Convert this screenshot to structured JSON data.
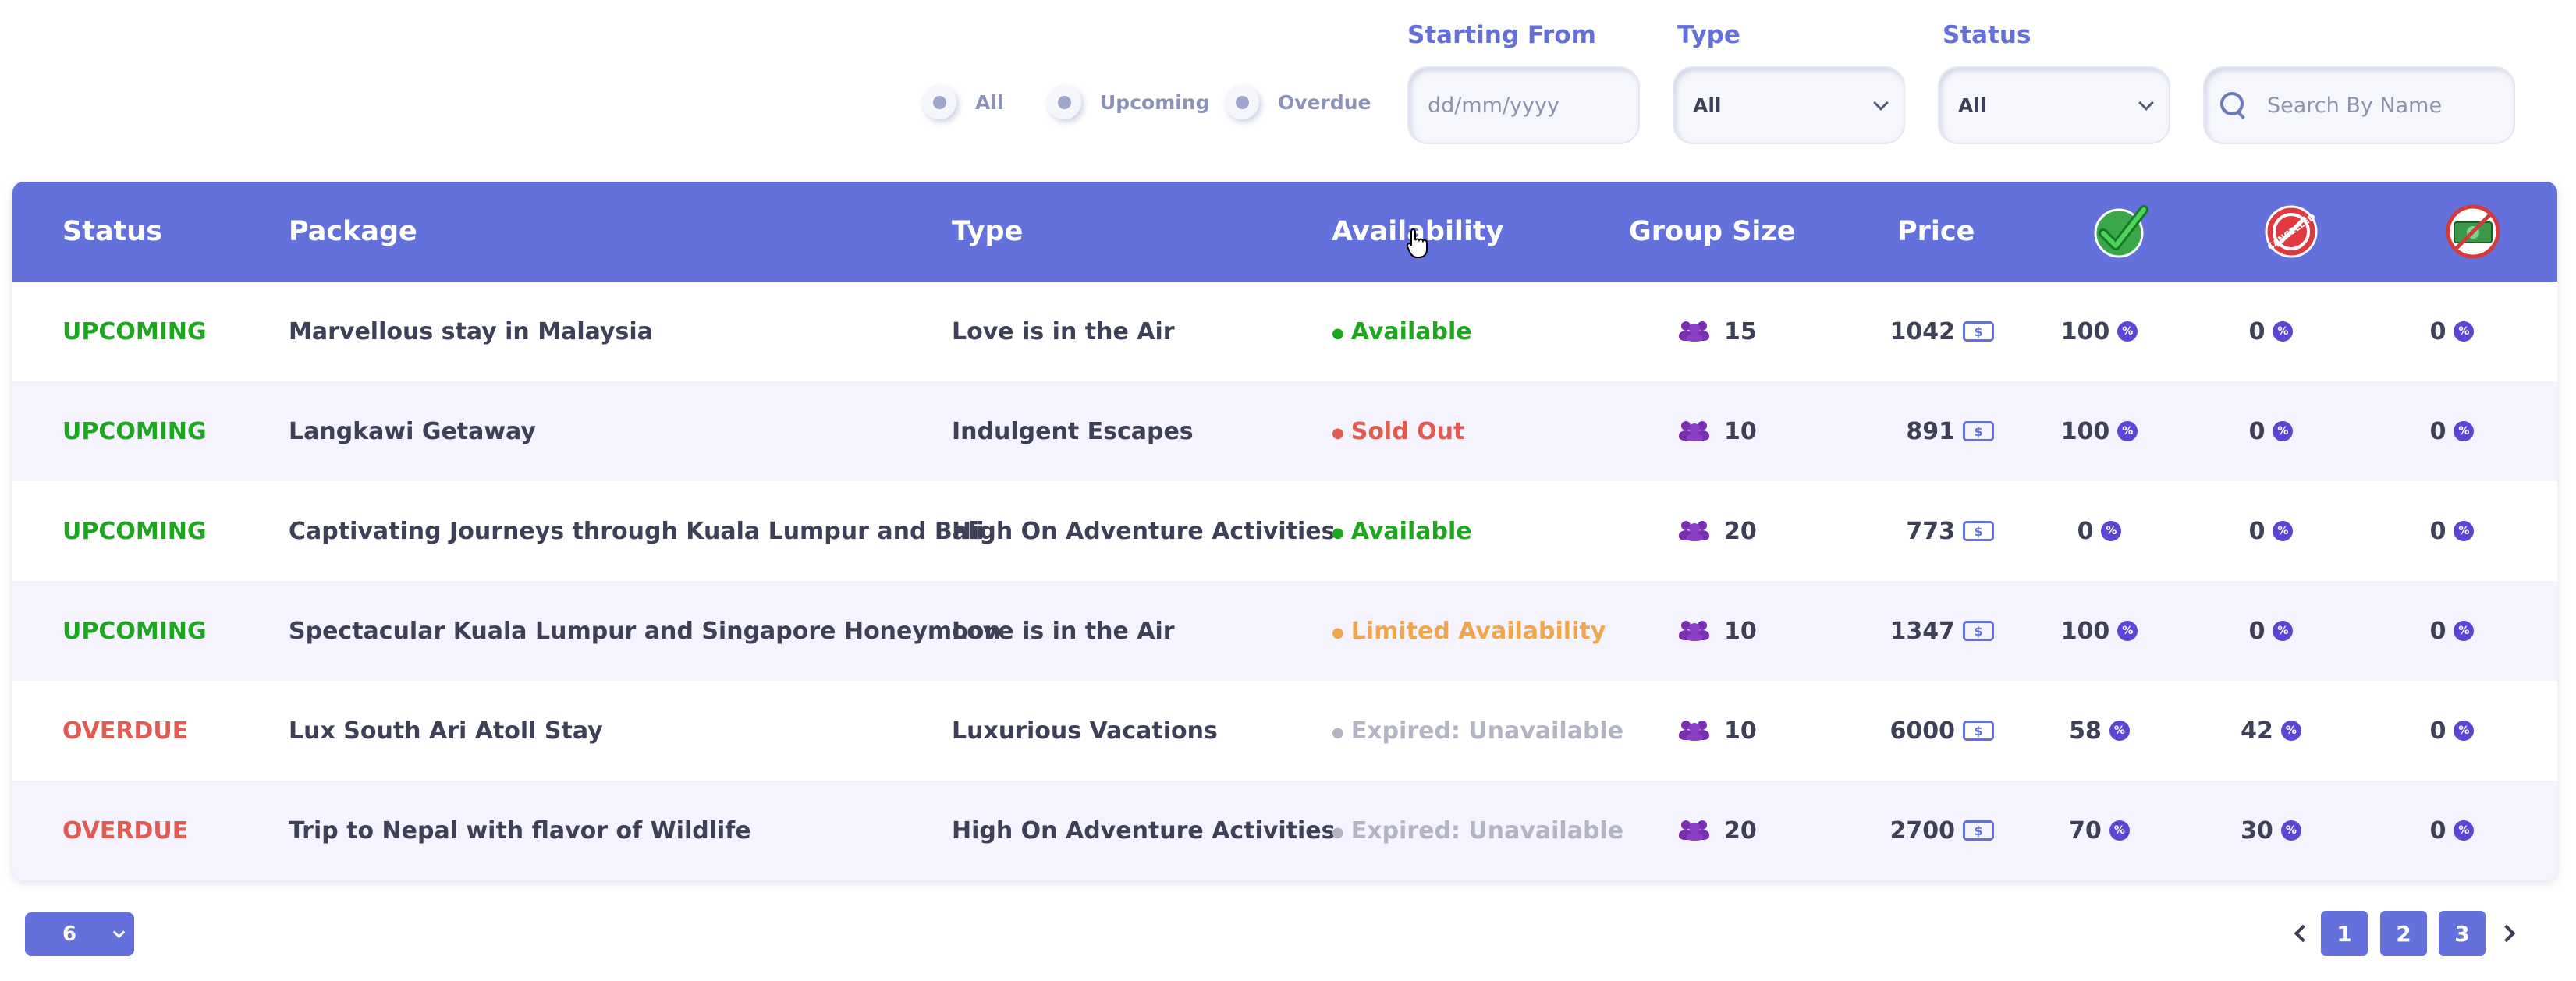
{
  "filters": {
    "radios": [
      {
        "label": "All"
      },
      {
        "label": "Upcoming"
      },
      {
        "label": "Overdue"
      }
    ],
    "starting_from": {
      "label": "Starting From",
      "placeholder": "dd/mm/yyyy"
    },
    "type": {
      "label": "Type",
      "value": "All"
    },
    "status": {
      "label": "Status",
      "value": "All"
    },
    "search": {
      "placeholder": "Search By Name"
    }
  },
  "table": {
    "headers": {
      "status": "Status",
      "package": "Package",
      "type": "Type",
      "availability": "Availability",
      "group_size": "Group Size",
      "price": "Price",
      "confirmed_icon": "check-mark-icon",
      "cancelled_icon": "cancelled-icon",
      "refund_icon": "no-refund-icon",
      "cancelled_stamp": "CANCELLED"
    },
    "rows": [
      {
        "status": "UPCOMING",
        "package": "Marvellous stay in Malaysia",
        "type": "Love is in the Air",
        "availability": "Available",
        "group_size": "15",
        "price": "1042",
        "confirmed": "100",
        "cancelled": "0",
        "refund": "0"
      },
      {
        "status": "UPCOMING",
        "package": "Langkawi Getaway",
        "type": "Indulgent Escapes",
        "availability": "Sold Out",
        "group_size": "10",
        "price": "891",
        "confirmed": "100",
        "cancelled": "0",
        "refund": "0"
      },
      {
        "status": "UPCOMING",
        "package": "Captivating Journeys through Kuala Lumpur and Bali",
        "type": "High On Adventure Activities",
        "availability": "Available",
        "group_size": "20",
        "price": "773",
        "confirmed": "0",
        "cancelled": "0",
        "refund": "0"
      },
      {
        "status": "UPCOMING",
        "package": "Spectacular Kuala Lumpur and Singapore Honeymoon",
        "type": "Love is in the Air",
        "availability": "Limited Availability",
        "group_size": "10",
        "price": "1347",
        "confirmed": "100",
        "cancelled": "0",
        "refund": "0"
      },
      {
        "status": "OVERDUE",
        "package": "Lux South Ari Atoll Stay",
        "type": "Luxurious Vacations",
        "availability": "Expired: Unavailable",
        "group_size": "10",
        "price": "6000",
        "confirmed": "58",
        "cancelled": "42",
        "refund": "0"
      },
      {
        "status": "OVERDUE",
        "package": "Trip to Nepal with flavor of Wildlife",
        "type": "High On Adventure Activities",
        "availability": "Expired: Unavailable",
        "group_size": "20",
        "price": "2700",
        "confirmed": "70",
        "cancelled": "30",
        "refund": "0"
      }
    ]
  },
  "pagination": {
    "page_size": "6",
    "pages": [
      "1",
      "2",
      "3"
    ]
  },
  "colors": {
    "accent": "#6470db",
    "upcoming": "#1ea61e",
    "overdue": "#e05c53",
    "limited": "#f0a64c",
    "expired": "#b3b5c4"
  },
  "icons": {
    "percent": "percent-icon",
    "money": "money-icon",
    "group": "group-icon"
  }
}
